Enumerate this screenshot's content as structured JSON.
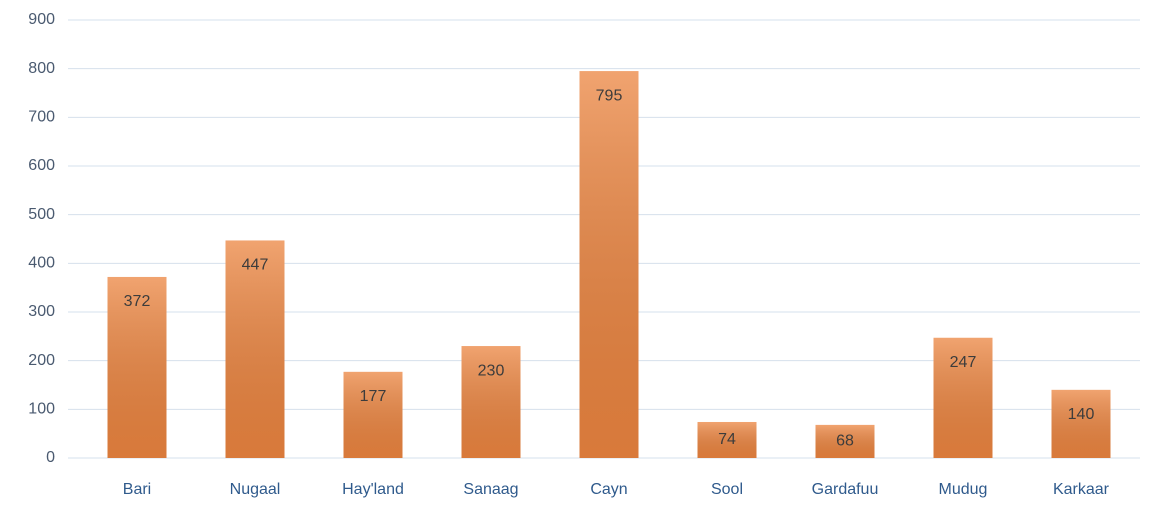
{
  "chart_data": {
    "type": "bar",
    "categories": [
      "Bari",
      "Nugaal",
      "Hay'land",
      "Sanaag",
      "Cayn",
      "Sool",
      "Gardafuu",
      "Mudug",
      "Karkaar"
    ],
    "values": [
      372,
      447,
      177,
      230,
      795,
      74,
      68,
      247,
      140
    ],
    "color": "#ec8540",
    "ylim": [
      0,
      900
    ],
    "yticks": [
      0,
      100,
      200,
      300,
      400,
      500,
      600,
      700,
      800,
      900
    ],
    "grid": true
  }
}
